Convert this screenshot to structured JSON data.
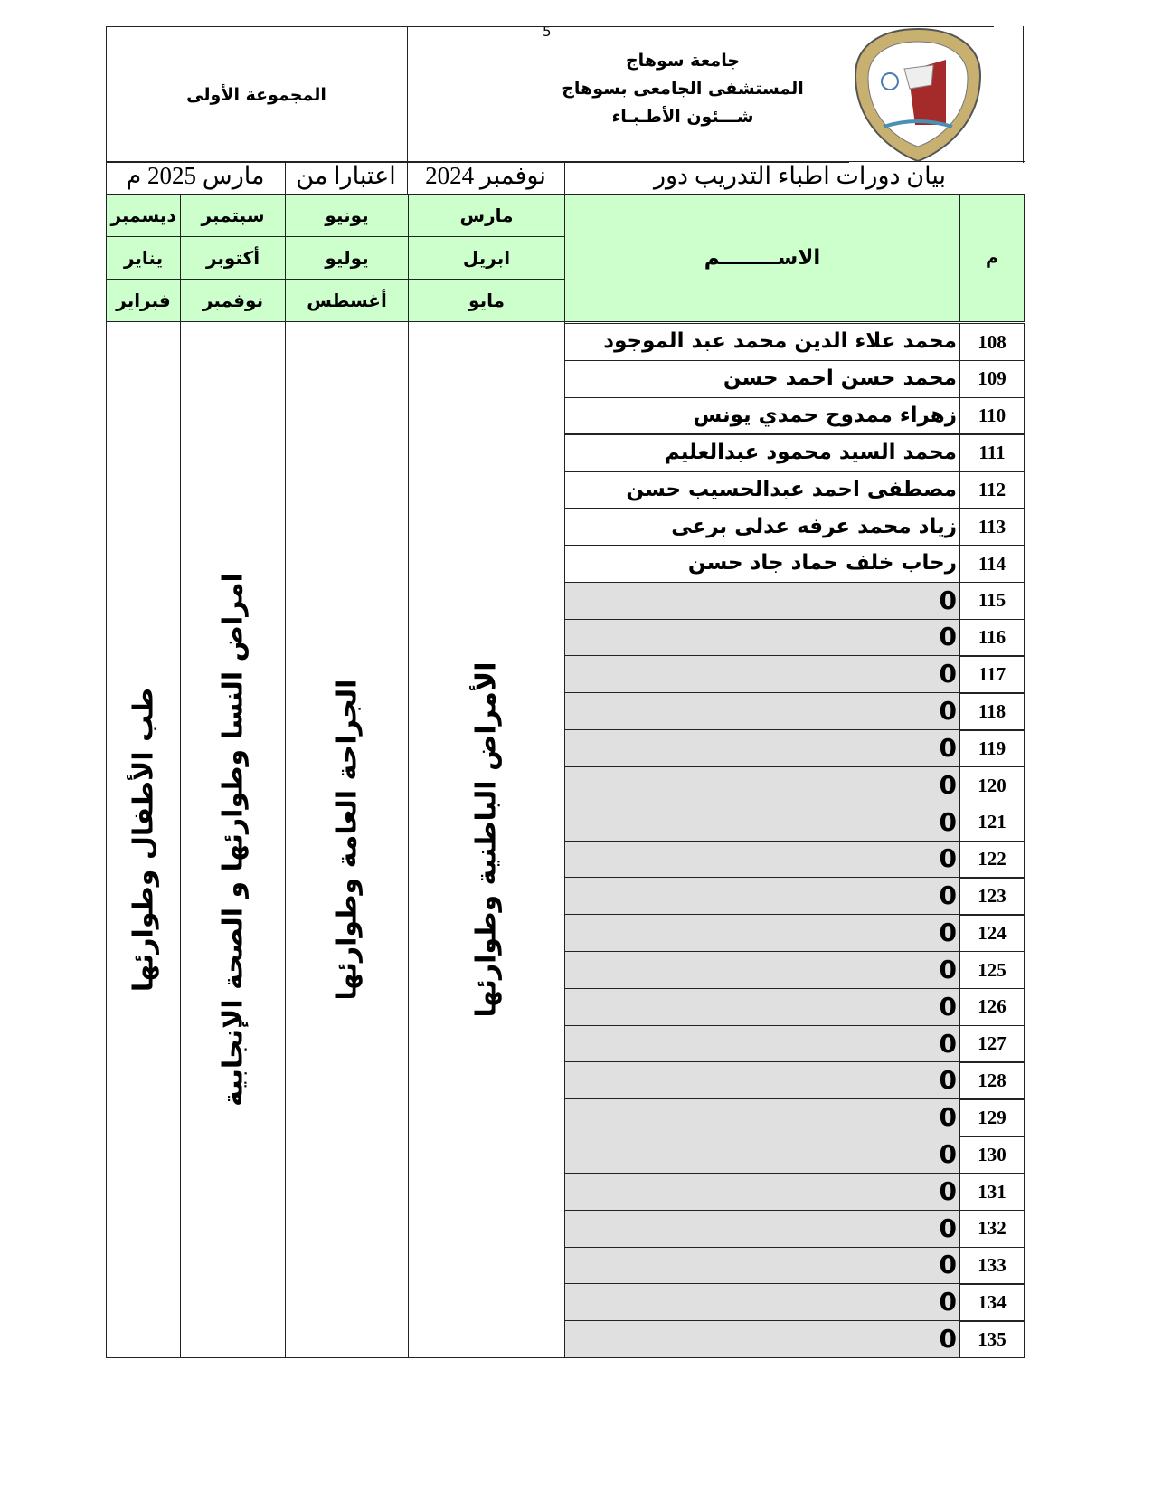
{
  "page_number": "5",
  "header": {
    "university": "جامعة سوهاج",
    "hospital": "المستشفى الجامعى بسوهاج",
    "department": "شـــئون الأطـبـاء",
    "group": "المجموعة الأولى",
    "logo_text": "جامعة سوهاج"
  },
  "subtitle": {
    "title": "بيان دورات اطباء التدريب دور",
    "month_from": "نوفمبر 2024",
    "as_of": "اعتبارا من",
    "month_to": "مارس 2025 م"
  },
  "table": {
    "col_num": "م",
    "col_name": "الاســــــــم",
    "rotations": [
      {
        "months": [
          "مارس",
          "ابريل",
          "مايو"
        ],
        "department": "الأمراض الباطنية وطوارئها"
      },
      {
        "months": [
          "يونيو",
          "يوليو",
          "أغسطس"
        ],
        "department": "الجراحة العامة وطوارئها"
      },
      {
        "months": [
          "سبتمبر",
          "أكتوبر",
          "نوفمبر"
        ],
        "department": "امراض النسا وطوارئها و الصحة الإنجابية"
      },
      {
        "months": [
          "ديسمبر",
          "يناير",
          "فبراير"
        ],
        "department": "طب الأطفال وطوارئها"
      }
    ],
    "rows": [
      {
        "num": "108",
        "name": "محمد علاء الدين محمد عبد الموجود"
      },
      {
        "num": "109",
        "name": "محمد حسن احمد حسن"
      },
      {
        "num": "110",
        "name": "زهراء ممدوح حمدي يونس"
      },
      {
        "num": "111",
        "name": "محمد السيد محمود عبدالعليم"
      },
      {
        "num": "112",
        "name": "مصطفى احمد عبدالحسيب حسن"
      },
      {
        "num": "113",
        "name": "زياد محمد عرفه عدلى برعى"
      },
      {
        "num": "114",
        "name": "رحاب خلف حماد جاد حسن"
      },
      {
        "num": "115",
        "name": "0"
      },
      {
        "num": "116",
        "name": "0"
      },
      {
        "num": "117",
        "name": "0"
      },
      {
        "num": "118",
        "name": "0"
      },
      {
        "num": "119",
        "name": "0"
      },
      {
        "num": "120",
        "name": "0"
      },
      {
        "num": "121",
        "name": "0"
      },
      {
        "num": "122",
        "name": "0"
      },
      {
        "num": "123",
        "name": "0"
      },
      {
        "num": "124",
        "name": "0"
      },
      {
        "num": "125",
        "name": "0"
      },
      {
        "num": "126",
        "name": "0"
      },
      {
        "num": "127",
        "name": "0"
      },
      {
        "num": "128",
        "name": "0"
      },
      {
        "num": "129",
        "name": "0"
      },
      {
        "num": "130",
        "name": "0"
      },
      {
        "num": "131",
        "name": "0"
      },
      {
        "num": "132",
        "name": "0"
      },
      {
        "num": "133",
        "name": "0"
      },
      {
        "num": "134",
        "name": "0"
      },
      {
        "num": "135",
        "name": "0"
      }
    ]
  },
  "colors": {
    "header_green": "#ccffcc",
    "empty_row_gray": "#e0e0e0",
    "logo_red": "#a52a2a",
    "logo_gold": "#c8b070"
  }
}
